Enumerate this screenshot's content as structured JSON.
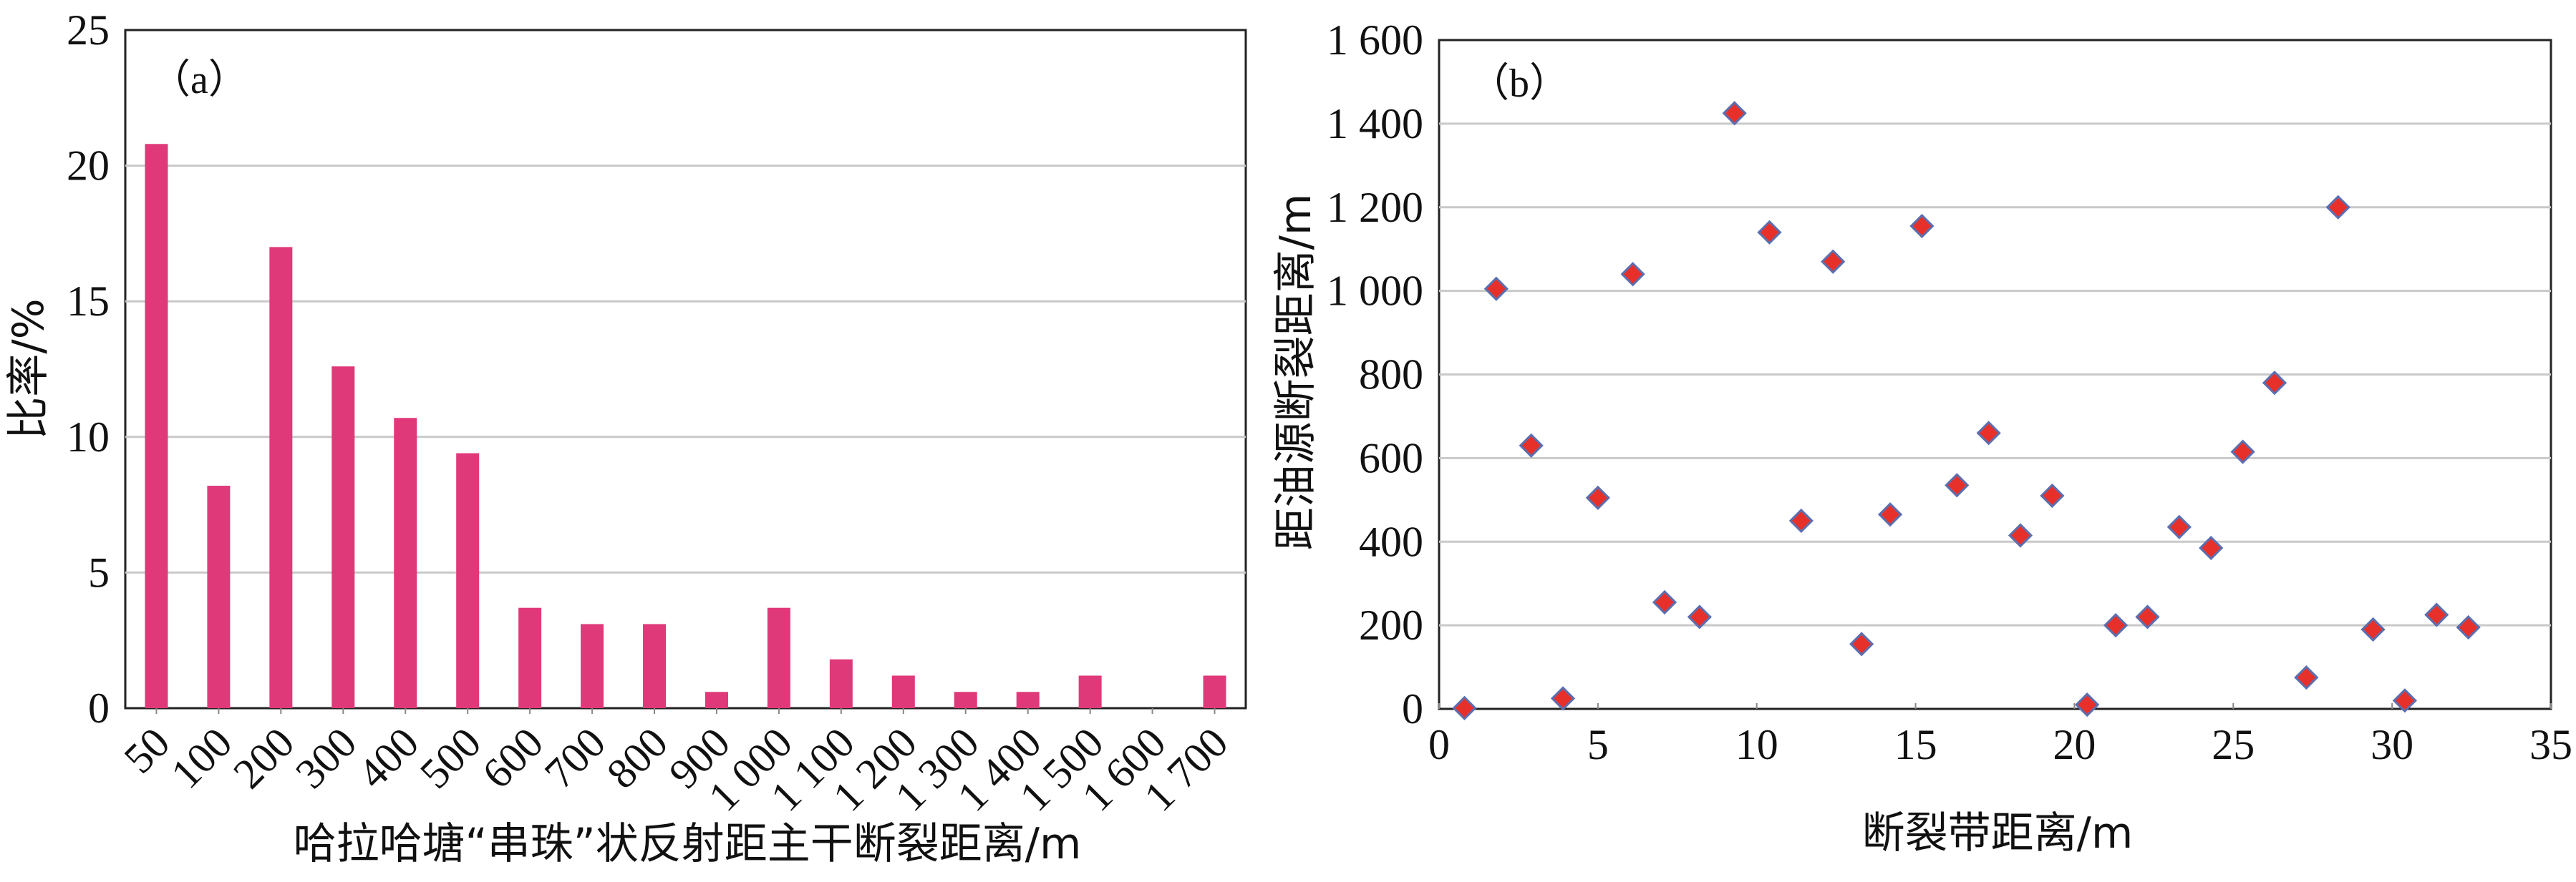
{
  "chart_data": [
    {
      "type": "bar",
      "panel_label": "（a）",
      "title": "",
      "xlabel": "哈拉哈塘“串珠”状反射距主干断裂距离/m",
      "ylabel": "比率/%",
      "categories": [
        "50",
        "100",
        "200",
        "300",
        "400",
        "500",
        "600",
        "700",
        "800",
        "900",
        "1 000",
        "1 100",
        "1 200",
        "1 300",
        "1 400",
        "1 500",
        "1 600",
        "1 700"
      ],
      "values": [
        20.8,
        8.2,
        17.0,
        12.6,
        10.7,
        9.4,
        3.7,
        3.1,
        3.1,
        0.6,
        3.7,
        1.8,
        1.2,
        0.6,
        0.6,
        1.2,
        0,
        1.2
      ],
      "yticks": [
        "0",
        "5",
        "10",
        "15",
        "20",
        "25"
      ],
      "ylim": [
        0,
        25
      ],
      "grid": true,
      "bar_color": "#E0397A"
    },
    {
      "type": "scatter",
      "panel_label": "（b）",
      "title": "",
      "xlabel": "断裂带距离/m",
      "ylabel": "距油源断裂距离/m",
      "xticks": [
        "0",
        "5",
        "10",
        "15",
        "20",
        "25",
        "30",
        "35"
      ],
      "yticks": [
        "0",
        "200",
        "400",
        "600",
        "800",
        "1 000",
        "1 200",
        "1 400",
        "1 600"
      ],
      "xlim": [
        0,
        35
      ],
      "ylim": [
        0,
        1600
      ],
      "grid": true,
      "marker_color": "#E8302A",
      "marker_edge_color": "#5A6FB0",
      "points": [
        {
          "x": 0.8,
          "y": 2
        },
        {
          "x": 1.8,
          "y": 1005
        },
        {
          "x": 2.9,
          "y": 630
        },
        {
          "x": 3.9,
          "y": 25
        },
        {
          "x": 5.0,
          "y": 505
        },
        {
          "x": 6.1,
          "y": 1040
        },
        {
          "x": 7.1,
          "y": 255
        },
        {
          "x": 8.2,
          "y": 220
        },
        {
          "x": 9.3,
          "y": 1425
        },
        {
          "x": 10.4,
          "y": 1140
        },
        {
          "x": 11.4,
          "y": 450
        },
        {
          "x": 12.4,
          "y": 1070
        },
        {
          "x": 13.3,
          "y": 155
        },
        {
          "x": 14.2,
          "y": 465
        },
        {
          "x": 15.2,
          "y": 1155
        },
        {
          "x": 16.3,
          "y": 535
        },
        {
          "x": 17.3,
          "y": 660
        },
        {
          "x": 18.3,
          "y": 415
        },
        {
          "x": 19.3,
          "y": 510
        },
        {
          "x": 20.4,
          "y": 10
        },
        {
          "x": 21.3,
          "y": 200
        },
        {
          "x": 22.3,
          "y": 220
        },
        {
          "x": 23.3,
          "y": 435
        },
        {
          "x": 24.3,
          "y": 385
        },
        {
          "x": 25.3,
          "y": 615
        },
        {
          "x": 26.3,
          "y": 780
        },
        {
          "x": 27.3,
          "y": 75
        },
        {
          "x": 28.3,
          "y": 1200
        },
        {
          "x": 29.4,
          "y": 190
        },
        {
          "x": 30.4,
          "y": 20
        },
        {
          "x": 31.4,
          "y": 225
        },
        {
          "x": 32.4,
          "y": 195
        }
      ]
    }
  ]
}
